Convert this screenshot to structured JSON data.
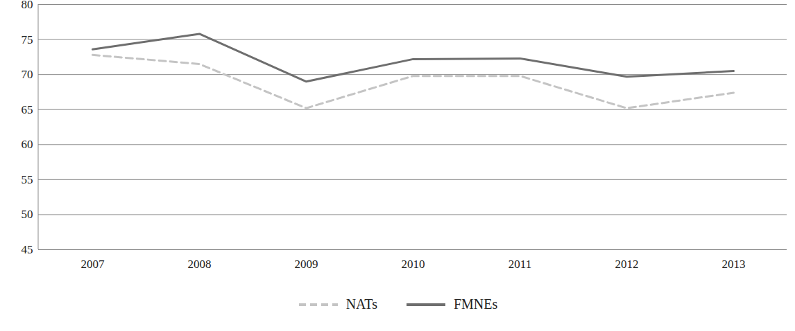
{
  "chart_data": {
    "type": "line",
    "categories": [
      "2007",
      "2008",
      "2009",
      "2010",
      "2011",
      "2012",
      "2013"
    ],
    "series": [
      {
        "name": "NATs",
        "color": "#c4c4c4",
        "line_style": "dashed",
        "values": [
          72.8,
          71.5,
          65.2,
          69.8,
          69.8,
          65.2,
          67.4
        ]
      },
      {
        "name": "FMNEs",
        "color": "#6e6e6e",
        "line_style": "solid",
        "values": [
          73.6,
          75.8,
          69.0,
          72.2,
          72.3,
          69.7,
          70.5
        ]
      }
    ],
    "ylim": [
      45,
      80
    ],
    "yticks": [
      45,
      50,
      55,
      60,
      65,
      70,
      75,
      80
    ],
    "grid": true,
    "legend": "bottom"
  }
}
